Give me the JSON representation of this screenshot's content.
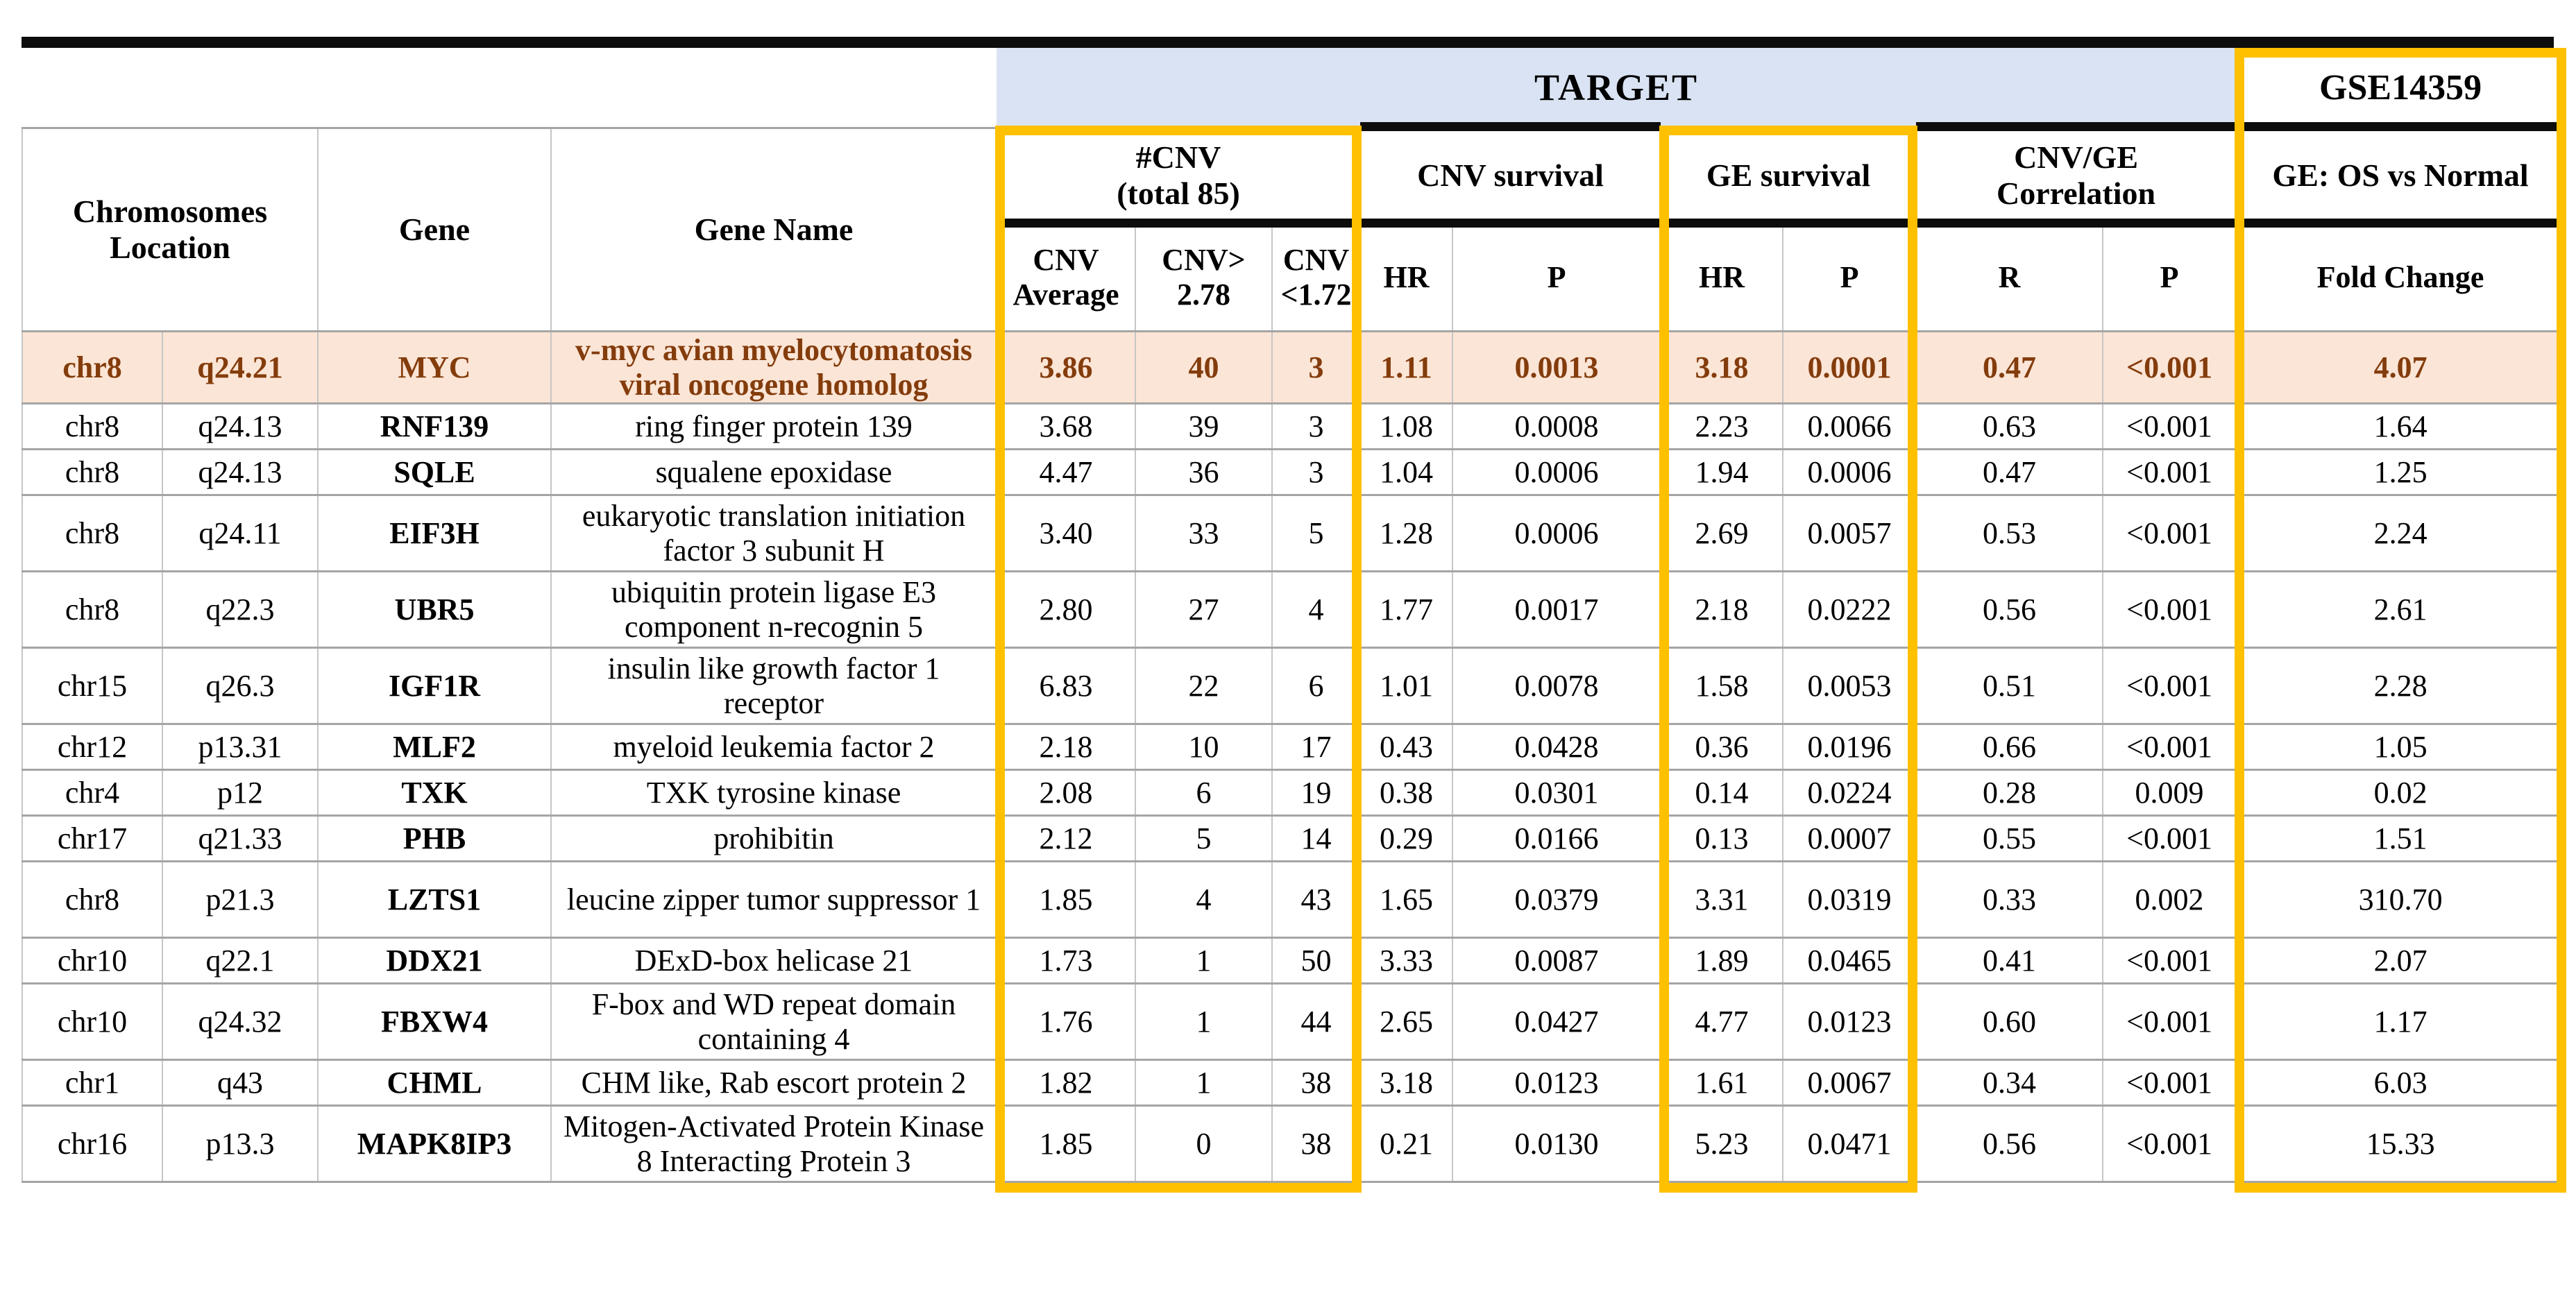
{
  "figure": {
    "target_label": "TARGET",
    "gse_label": "GSE14359"
  },
  "colors": {
    "accent_yellow": "#FFC000",
    "target_band_blue": "#DAE3F3",
    "highlight_row_bg": "#FBE5D6",
    "highlight_text_brown": "#843C0C",
    "header_gray": "#F1F1F1",
    "rule_black": "#0D0D0D"
  },
  "header": {
    "chromosomes_location": "Chromosomes\nLocation",
    "gene": "Gene",
    "gene_name": "Gene Name",
    "cnv_group": "#CNV\n(total 85)",
    "cnv_survival": "CNV survival",
    "ge_survival": "GE survival",
    "cnv_ge_correlation": "CNV/GE\nCorrelation",
    "ge_os_vs_normal": "GE: OS vs Normal",
    "sub": {
      "cnv_average": "CNV\nAverage",
      "cnv_above": "CNV>\n2.78",
      "cnv_below": "CNV\n<1.72",
      "cnv_hr": "HR",
      "cnv_p": "P",
      "ge_hr": "HR",
      "ge_p": "P",
      "corr_r": "R",
      "corr_p": "P",
      "fold_change": "Fold Change"
    }
  },
  "rows": [
    {
      "chr": "chr8",
      "band": "q24.21",
      "gene": "MYC",
      "gene_name": "v-myc avian myelocytomatosis viral oncogene homolog",
      "cnv_avg": "3.86",
      "cnv_gt": "40",
      "cnv_lt": "3",
      "cnv_hr": "1.11",
      "cnv_p": "0.0013",
      "ge_hr": "3.18",
      "ge_p": "0.0001",
      "corr_r": "0.47",
      "corr_p": "<0.001",
      "fold_change": "4.07",
      "highlighted": true
    },
    {
      "chr": "chr8",
      "band": "q24.13",
      "gene": "RNF139",
      "gene_name": "ring finger protein 139",
      "cnv_avg": "3.68",
      "cnv_gt": "39",
      "cnv_lt": "3",
      "cnv_hr": "1.08",
      "cnv_p": "0.0008",
      "ge_hr": "2.23",
      "ge_p": "0.0066",
      "corr_r": "0.63",
      "corr_p": "<0.001",
      "fold_change": "1.64",
      "highlighted": false
    },
    {
      "chr": "chr8",
      "band": "q24.13",
      "gene": "SQLE",
      "gene_name": "squalene epoxidase",
      "cnv_avg": "4.47",
      "cnv_gt": "36",
      "cnv_lt": "3",
      "cnv_hr": "1.04",
      "cnv_p": "0.0006",
      "ge_hr": "1.94",
      "ge_p": "0.0006",
      "corr_r": "0.47",
      "corr_p": "<0.001",
      "fold_change": "1.25",
      "highlighted": false
    },
    {
      "chr": "chr8",
      "band": "q24.11",
      "gene": "EIF3H",
      "gene_name": "eukaryotic translation initiation factor 3 subunit H",
      "cnv_avg": "3.40",
      "cnv_gt": "33",
      "cnv_lt": "5",
      "cnv_hr": "1.28",
      "cnv_p": "0.0006",
      "ge_hr": "2.69",
      "ge_p": "0.0057",
      "corr_r": "0.53",
      "corr_p": "<0.001",
      "fold_change": "2.24",
      "highlighted": false
    },
    {
      "chr": "chr8",
      "band": "q22.3",
      "gene": "UBR5",
      "gene_name": "ubiquitin protein ligase E3 component n-recognin 5",
      "cnv_avg": "2.80",
      "cnv_gt": "27",
      "cnv_lt": "4",
      "cnv_hr": "1.77",
      "cnv_p": "0.0017",
      "ge_hr": "2.18",
      "ge_p": "0.0222",
      "corr_r": "0.56",
      "corr_p": "<0.001",
      "fold_change": "2.61",
      "highlighted": false
    },
    {
      "chr": "chr15",
      "band": "q26.3",
      "gene": "IGF1R",
      "gene_name": "insulin like growth factor 1 receptor",
      "cnv_avg": "6.83",
      "cnv_gt": "22",
      "cnv_lt": "6",
      "cnv_hr": "1.01",
      "cnv_p": "0.0078",
      "ge_hr": "1.58",
      "ge_p": "0.0053",
      "corr_r": "0.51",
      "corr_p": "<0.001",
      "fold_change": "2.28",
      "highlighted": false
    },
    {
      "chr": "chr12",
      "band": "p13.31",
      "gene": "MLF2",
      "gene_name": "myeloid leukemia factor 2",
      "cnv_avg": "2.18",
      "cnv_gt": "10",
      "cnv_lt": "17",
      "cnv_hr": "0.43",
      "cnv_p": "0.0428",
      "ge_hr": "0.36",
      "ge_p": "0.0196",
      "corr_r": "0.66",
      "corr_p": "<0.001",
      "fold_change": "1.05",
      "highlighted": false
    },
    {
      "chr": "chr4",
      "band": "p12",
      "gene": "TXK",
      "gene_name": "TXK tyrosine kinase",
      "cnv_avg": "2.08",
      "cnv_gt": "6",
      "cnv_lt": "19",
      "cnv_hr": "0.38",
      "cnv_p": "0.0301",
      "ge_hr": "0.14",
      "ge_p": "0.0224",
      "corr_r": "0.28",
      "corr_p": "0.009",
      "fold_change": "0.02",
      "highlighted": false
    },
    {
      "chr": "chr17",
      "band": "q21.33",
      "gene": "PHB",
      "gene_name": "prohibitin",
      "cnv_avg": "2.12",
      "cnv_gt": "5",
      "cnv_lt": "14",
      "cnv_hr": "0.29",
      "cnv_p": "0.0166",
      "ge_hr": "0.13",
      "ge_p": "0.0007",
      "corr_r": "0.55",
      "corr_p": "<0.001",
      "fold_change": "1.51",
      "highlighted": false
    },
    {
      "chr": "chr8",
      "band": "p21.3",
      "gene": "LZTS1",
      "gene_name": "leucine zipper tumor suppressor 1",
      "cnv_avg": "1.85",
      "cnv_gt": "4",
      "cnv_lt": "43",
      "cnv_hr": "1.65",
      "cnv_p": "0.0379",
      "ge_hr": "3.31",
      "ge_p": "0.0319",
      "corr_r": "0.33",
      "corr_p": "0.002",
      "fold_change": "310.70",
      "highlighted": false
    },
    {
      "chr": "chr10",
      "band": "q22.1",
      "gene": "DDX21",
      "gene_name": "DExD-box helicase 21",
      "cnv_avg": "1.73",
      "cnv_gt": "1",
      "cnv_lt": "50",
      "cnv_hr": "3.33",
      "cnv_p": "0.0087",
      "ge_hr": "1.89",
      "ge_p": "0.0465",
      "corr_r": "0.41",
      "corr_p": "<0.001",
      "fold_change": "2.07",
      "highlighted": false
    },
    {
      "chr": "chr10",
      "band": "q24.32",
      "gene": "FBXW4",
      "gene_name": "F-box and WD repeat domain containing 4",
      "cnv_avg": "1.76",
      "cnv_gt": "1",
      "cnv_lt": "44",
      "cnv_hr": "2.65",
      "cnv_p": "0.0427",
      "ge_hr": "4.77",
      "ge_p": "0.0123",
      "corr_r": "0.60",
      "corr_p": "<0.001",
      "fold_change": "1.17",
      "highlighted": false
    },
    {
      "chr": "chr1",
      "band": "q43",
      "gene": "CHML",
      "gene_name": "CHM like, Rab escort protein 2",
      "cnv_avg": "1.82",
      "cnv_gt": "1",
      "cnv_lt": "38",
      "cnv_hr": "3.18",
      "cnv_p": "0.0123",
      "ge_hr": "1.61",
      "ge_p": "0.0067",
      "corr_r": "0.34",
      "corr_p": "<0.001",
      "fold_change": "6.03",
      "highlighted": false
    },
    {
      "chr": "chr16",
      "band": "p13.3",
      "gene": "MAPK8IP3",
      "gene_name": "Mitogen-Activated Protein Kinase 8 Interacting Protein 3",
      "cnv_avg": "1.85",
      "cnv_gt": "0",
      "cnv_lt": "38",
      "cnv_hr": "0.21",
      "cnv_p": "0.0130",
      "ge_hr": "5.23",
      "ge_p": "0.0471",
      "corr_r": "0.56",
      "corr_p": "<0.001",
      "fold_change": "15.33",
      "highlighted": false
    }
  ]
}
